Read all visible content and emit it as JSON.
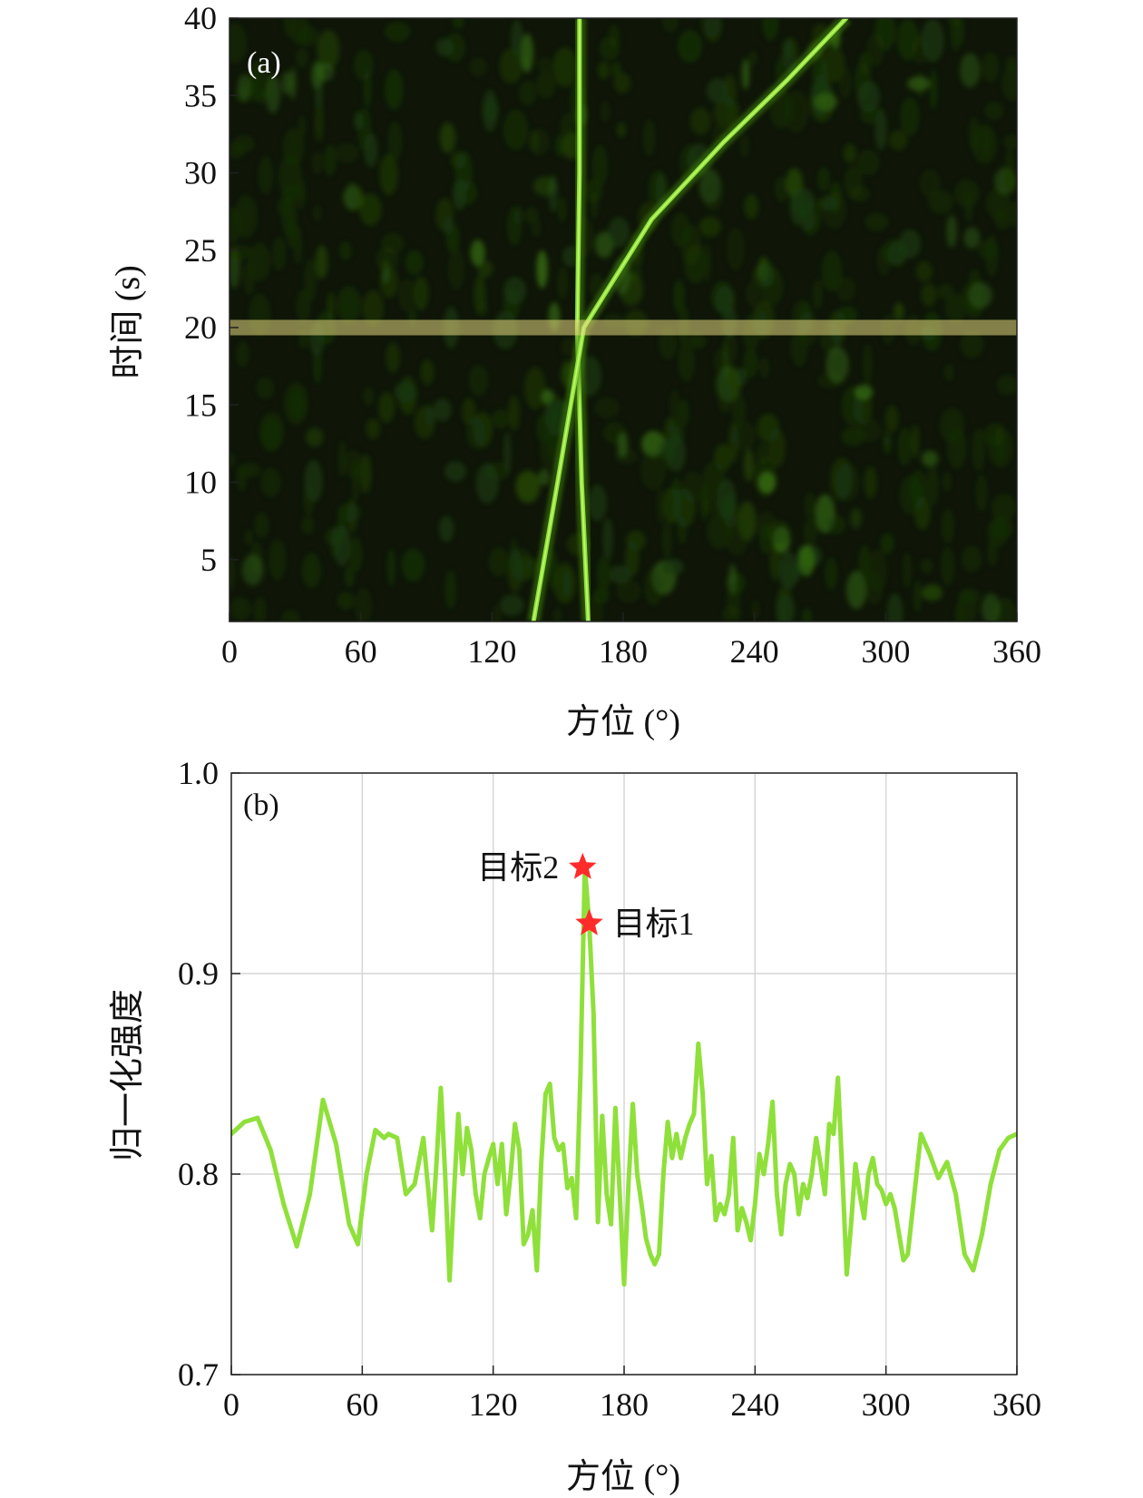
{
  "chart_data": [
    {
      "panel_label": "(a)",
      "type": "heatmap",
      "xlabel": "方位 (°)",
      "ylabel": "时间 (s)",
      "xlim": [
        0,
        360
      ],
      "ylim": [
        1,
        40
      ],
      "xticks": [
        "0",
        "60",
        "120",
        "180",
        "240",
        "300",
        "360"
      ],
      "yticks": [
        "5",
        "10",
        "15",
        "20",
        "25",
        "30",
        "35",
        "40"
      ],
      "colormap": [
        "#0a0d05",
        "#1a3a0a",
        "#3c7a10",
        "#8fe23a",
        "#d8ff8a"
      ],
      "highlight_band_time": 20,
      "tracks": [
        {
          "name": "目标1",
          "points": [
            [
              164,
              1
            ],
            [
              161,
              10
            ],
            [
              159,
              20
            ],
            [
              160,
              30
            ],
            [
              160,
              40
            ]
          ]
        },
        {
          "name": "目标2",
          "points": [
            [
              139,
              1
            ],
            [
              150,
              10
            ],
            [
              162,
              20
            ],
            [
              193,
              27
            ],
            [
              226,
              32
            ],
            [
              255,
              36
            ],
            [
              282,
              40
            ]
          ]
        }
      ]
    },
    {
      "panel_label": "(b)",
      "type": "line",
      "xlabel": "方位 (°)",
      "ylabel": "归一化强度",
      "xlim": [
        0,
        360
      ],
      "ylim": [
        0.7,
        1.0
      ],
      "xticks": [
        "0",
        "60",
        "120",
        "180",
        "240",
        "300",
        "360"
      ],
      "yticks": [
        "0.7",
        "0.8",
        "0.9",
        "1.0"
      ],
      "grid": true,
      "line_color": "#8fe03a",
      "x": [
        0,
        6,
        12,
        18,
        24,
        30,
        36,
        42,
        48,
        54,
        58,
        62,
        66,
        70,
        72,
        76,
        80,
        84,
        88,
        92,
        94,
        96,
        98,
        100,
        102,
        104,
        106,
        108,
        110,
        112,
        114,
        116,
        118,
        120,
        122,
        124,
        126,
        128,
        130,
        132,
        134,
        136,
        138,
        140,
        142,
        144,
        146,
        148,
        150,
        152,
        154,
        156,
        158,
        160,
        162,
        164,
        166,
        168,
        170,
        172,
        174,
        176,
        178,
        180,
        182,
        184,
        186,
        188,
        190,
        192,
        194,
        196,
        198,
        200,
        202,
        204,
        206,
        208,
        210,
        212,
        214,
        216,
        218,
        220,
        222,
        224,
        226,
        228,
        230,
        232,
        234,
        236,
        238,
        240,
        242,
        244,
        246,
        248,
        250,
        252,
        254,
        256,
        258,
        260,
        262,
        264,
        266,
        268,
        270,
        272,
        274,
        276,
        278,
        280,
        282,
        284,
        286,
        288,
        290,
        292,
        294,
        296,
        298,
        300,
        302,
        304,
        306,
        308,
        310,
        312,
        316,
        320,
        324,
        328,
        332,
        336,
        340,
        344,
        348,
        352,
        356,
        360
      ],
      "y": [
        0.82,
        0.826,
        0.828,
        0.812,
        0.785,
        0.764,
        0.79,
        0.837,
        0.815,
        0.775,
        0.765,
        0.8,
        0.822,
        0.818,
        0.82,
        0.818,
        0.79,
        0.795,
        0.818,
        0.772,
        0.805,
        0.843,
        0.8,
        0.747,
        0.79,
        0.83,
        0.8,
        0.823,
        0.812,
        0.79,
        0.778,
        0.8,
        0.808,
        0.815,
        0.795,
        0.815,
        0.78,
        0.8,
        0.825,
        0.812,
        0.765,
        0.77,
        0.782,
        0.752,
        0.805,
        0.84,
        0.845,
        0.818,
        0.812,
        0.815,
        0.793,
        0.798,
        0.778,
        0.85,
        0.953,
        0.925,
        0.88,
        0.776,
        0.829,
        0.79,
        0.775,
        0.833,
        0.79,
        0.745,
        0.795,
        0.835,
        0.8,
        0.785,
        0.768,
        0.76,
        0.755,
        0.76,
        0.8,
        0.826,
        0.808,
        0.82,
        0.808,
        0.818,
        0.825,
        0.83,
        0.865,
        0.84,
        0.795,
        0.809,
        0.777,
        0.785,
        0.78,
        0.79,
        0.818,
        0.772,
        0.783,
        0.776,
        0.767,
        0.785,
        0.81,
        0.8,
        0.815,
        0.836,
        0.79,
        0.77,
        0.795,
        0.805,
        0.8,
        0.78,
        0.795,
        0.788,
        0.8,
        0.818,
        0.805,
        0.79,
        0.825,
        0.82,
        0.848,
        0.8,
        0.75,
        0.775,
        0.805,
        0.79,
        0.778,
        0.8,
        0.808,
        0.795,
        0.792,
        0.785,
        0.79,
        0.783,
        0.77,
        0.757,
        0.76,
        0.78,
        0.82,
        0.81,
        0.798,
        0.806,
        0.79,
        0.76,
        0.752,
        0.77,
        0.795,
        0.812,
        0.818,
        0.82
      ],
      "markers": [
        {
          "label": "目标2",
          "x": 161,
          "y": 0.953,
          "color": "#ff2a2a"
        },
        {
          "label": "目标1",
          "x": 164,
          "y": 0.925,
          "color": "#ff2a2a"
        }
      ]
    }
  ]
}
